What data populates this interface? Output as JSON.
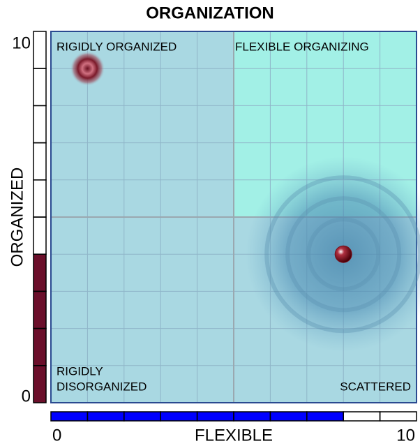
{
  "chart_data": {
    "type": "quadrant",
    "title": "ORGANIZATION",
    "xlabel": "FLEXIBLE",
    "ylabel": "ORGANIZED",
    "xlim": [
      0,
      10
    ],
    "ylim": [
      0,
      10
    ],
    "xticks": [
      0,
      10
    ],
    "yticks": [
      0,
      10
    ],
    "grid": true,
    "quadrants": {
      "top_left": {
        "label": [
          "RIGIDLY ORGANIZED"
        ],
        "color": "#a9d8e2"
      },
      "top_right": {
        "label": [
          "FLEXIBLE ORGANIZING"
        ],
        "color": "#a2f0e6"
      },
      "bottom_left": {
        "label": [
          "RIGIDLY",
          "DISORGANIZED"
        ],
        "color": "#a9d8e2"
      },
      "bottom_right": {
        "label": [
          "SCATTERED"
        ],
        "color": "#a9d8e2"
      }
    },
    "points": [
      {
        "x": 1,
        "y": 9,
        "color": "#8a2a3a"
      },
      {
        "x": 8,
        "y": 4,
        "color": "#7a0f1a"
      }
    ],
    "bars": {
      "x": {
        "value": 8,
        "color": "#0000ff"
      },
      "y": {
        "value": 4,
        "color": "#6b0f2a"
      }
    }
  }
}
